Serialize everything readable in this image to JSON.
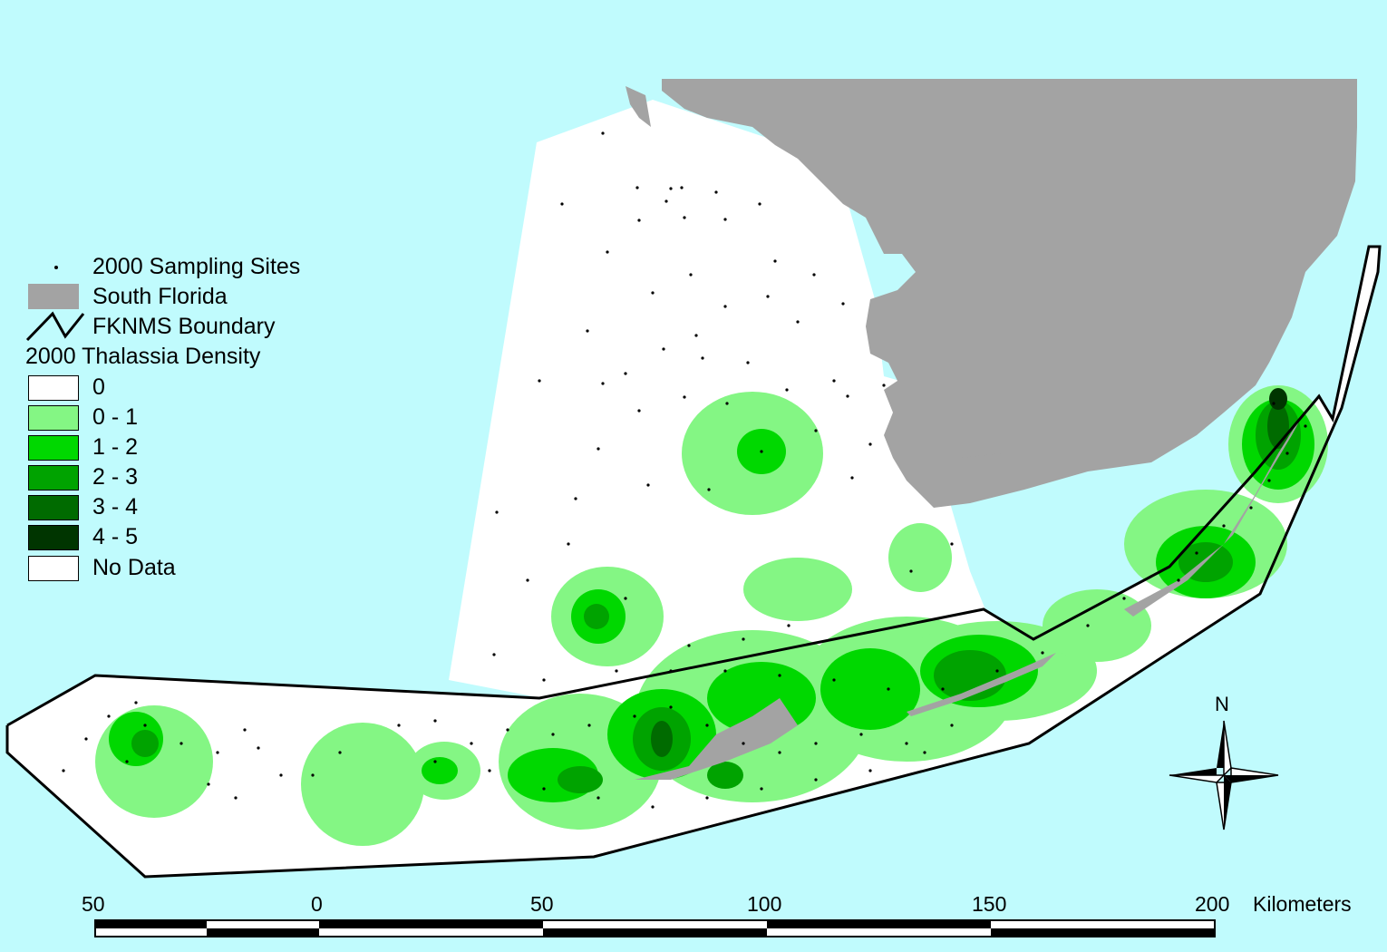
{
  "legend": {
    "items": [
      {
        "label": "2000 Sampling Sites",
        "symbol": "dot"
      },
      {
        "label": "South Florida",
        "symbol": "fill",
        "color": "#a3a3a3"
      },
      {
        "label": "FKNMS Boundary",
        "symbol": "line"
      }
    ],
    "density_title": "2000 Thalassia Density",
    "density_classes": [
      {
        "label": "0",
        "color": "#ffffff"
      },
      {
        "label": "0 - 1",
        "color": "#84f684"
      },
      {
        "label": "1 - 2",
        "color": "#00d800"
      },
      {
        "label": "2 - 3",
        "color": "#00a300"
      },
      {
        "label": "3 - 4",
        "color": "#006b00"
      },
      {
        "label": "4 - 5",
        "color": "#003500"
      },
      {
        "label": "No Data",
        "color": "#c0fbfd"
      }
    ]
  },
  "scale_bar": {
    "ticks": [
      "50",
      "0",
      "50",
      "100",
      "150",
      "200"
    ],
    "unit": "Kilometers"
  },
  "north_arrow": {
    "label": "N",
    "icon": "compass-rose-icon"
  },
  "colors": {
    "water": "#c0fbfd",
    "land": "#a3a3a3",
    "boundary": "#000000"
  }
}
